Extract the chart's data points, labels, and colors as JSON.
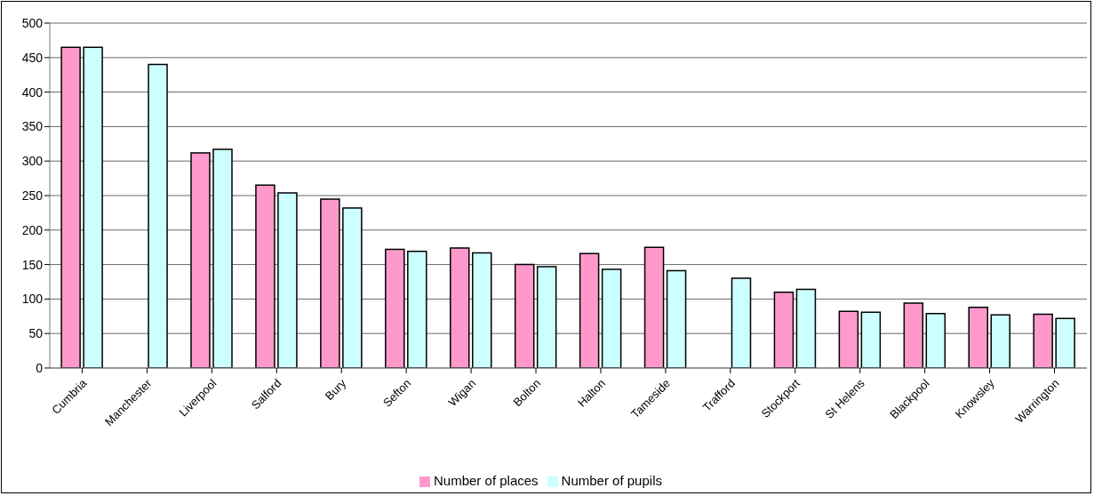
{
  "chart_data": {
    "type": "bar",
    "categories": [
      "Cumbria",
      "Manchester",
      "Liverpool",
      "Salford",
      "Bury",
      "Sefton",
      "Wigan",
      "Bolton",
      "Halton",
      "Tameside",
      "Trafford",
      "Stockport",
      "St Helens",
      "Blackpool",
      "Knowsley",
      "Warrington"
    ],
    "series": [
      {
        "name": "Number of places",
        "color": "#ff99cc",
        "values": [
          465,
          null,
          312,
          265,
          245,
          172,
          174,
          150,
          166,
          175,
          null,
          110,
          82,
          94,
          88,
          78
        ]
      },
      {
        "name": "Number of pupils",
        "color": "#ccffff",
        "values": [
          465,
          440,
          317,
          254,
          232,
          169,
          167,
          147,
          143,
          141,
          130,
          114,
          81,
          79,
          77,
          72
        ]
      }
    ],
    "ylim": [
      0,
      500
    ],
    "yticks": [
      0,
      50,
      100,
      150,
      200,
      250,
      300,
      350,
      400,
      450,
      500
    ],
    "grid": "y",
    "legend": "bottom"
  }
}
